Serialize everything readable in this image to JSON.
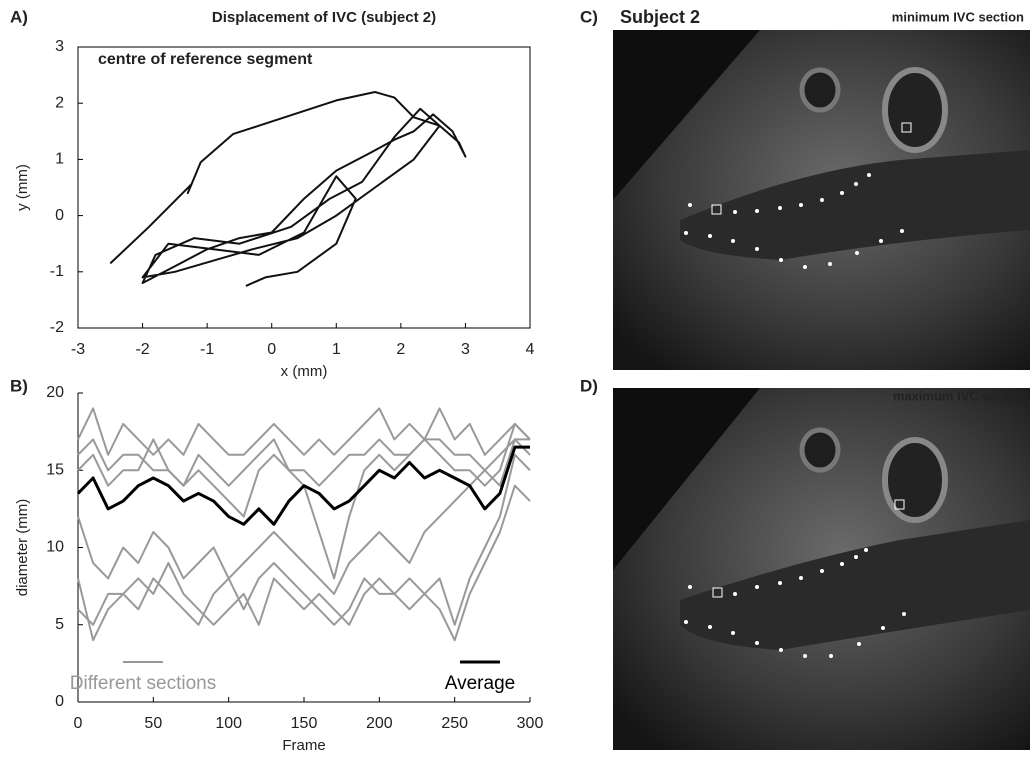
{
  "chart_data": [
    {
      "type": "line",
      "panel_label": "A)",
      "title": "Displacement of IVC (subject 2)",
      "annotation": "centre of reference segment",
      "xlabel": "x (mm)",
      "ylabel": "y (mm)",
      "box": true,
      "x": [
        -2.5,
        -1.9,
        -1.25,
        -1.3,
        -1.1,
        -0.6,
        0.2,
        1.0,
        1.6,
        1.9,
        2.2,
        2.6,
        2.9,
        3.0,
        2.8,
        2.5,
        2.2,
        1.9,
        1.5,
        1.0,
        0.5,
        0.0,
        -0.5,
        -1.0,
        -1.5,
        -2.0,
        -1.8,
        -1.2,
        -0.5,
        0.3,
        0.9,
        1.4,
        1.9,
        2.3,
        2.6,
        2.2,
        1.6,
        1.0,
        0.4,
        -0.3,
        -0.9,
        -1.5,
        -2.0,
        -1.6,
        -0.9,
        -0.2,
        0.5,
        1.0,
        1.3,
        1.0,
        0.4,
        -0.1,
        -0.4
      ],
      "series": [
        {
          "color": "#111111",
          "values": [
            -0.85,
            -0.2,
            0.55,
            0.4,
            0.95,
            1.45,
            1.75,
            2.05,
            2.2,
            2.1,
            1.75,
            1.6,
            1.3,
            1.05,
            1.5,
            1.8,
            1.5,
            1.35,
            1.1,
            0.8,
            0.3,
            -0.3,
            -0.4,
            -0.6,
            -0.9,
            -1.2,
            -0.7,
            -0.4,
            -0.5,
            -0.2,
            0.3,
            0.6,
            1.4,
            1.9,
            1.6,
            1.0,
            0.5,
            0.0,
            -0.4,
            -0.6,
            -0.8,
            -1.0,
            -1.1,
            -0.5,
            -0.6,
            -0.7,
            -0.3,
            0.7,
            0.3,
            -0.5,
            -1.0,
            -1.1,
            -1.25
          ]
        }
      ],
      "xlim": [
        -3,
        4
      ],
      "ylim": [
        -2,
        3
      ],
      "xticks": [
        -3,
        -2,
        -1,
        0,
        1,
        2,
        3,
        4
      ],
      "yticks": [
        -2,
        -1,
        0,
        1,
        2,
        3
      ]
    },
    {
      "type": "line",
      "panel_label": "B)",
      "xlabel": "Frame",
      "ylabel": "diameter (mm)",
      "box": false,
      "x": [
        0,
        10,
        20,
        30,
        40,
        50,
        60,
        70,
        80,
        90,
        100,
        110,
        120,
        130,
        140,
        150,
        160,
        170,
        180,
        190,
        200,
        210,
        220,
        230,
        240,
        250,
        260,
        270,
        280,
        290,
        300
      ],
      "series": [
        {
          "name": "Different sections",
          "color": "#999999",
          "values": [
            17,
            19,
            16,
            18,
            17,
            16,
            17,
            16,
            18,
            17,
            16,
            16,
            17,
            18,
            17,
            16,
            17,
            16,
            17,
            18,
            19,
            17,
            18,
            17,
            19,
            17,
            18,
            16,
            17,
            18,
            17
          ]
        },
        {
          "color": "#999999",
          "values": [
            16,
            17,
            15,
            16,
            16,
            15,
            15,
            14,
            16,
            15,
            14,
            15,
            16,
            17,
            15,
            15,
            14,
            15,
            16,
            16,
            17,
            16,
            16,
            17,
            17,
            16,
            16,
            15,
            16,
            17,
            17
          ]
        },
        {
          "color": "#999999",
          "values": [
            15,
            16,
            14,
            15,
            15,
            17,
            15,
            14,
            15,
            14,
            13,
            12,
            15,
            16,
            15,
            14,
            11,
            8,
            12,
            15,
            16,
            15,
            16,
            17,
            16,
            15,
            15,
            14,
            15,
            18,
            17
          ]
        },
        {
          "color": "#999999",
          "values": [
            12,
            9,
            8,
            10,
            9,
            11,
            10,
            8,
            9,
            10,
            8,
            9,
            10,
            11,
            10,
            9,
            8,
            7,
            9,
            10,
            11,
            10,
            9,
            11,
            12,
            13,
            14,
            15,
            14,
            17,
            16
          ]
        },
        {
          "color": "#999999",
          "values": [
            6,
            5,
            7,
            7,
            6,
            8,
            7,
            6,
            5,
            7,
            8,
            6,
            8,
            9,
            8,
            7,
            6,
            5,
            6,
            8,
            7,
            7,
            8,
            7,
            6,
            4,
            7,
            9,
            11,
            14,
            13
          ]
        },
        {
          "color": "#999999",
          "values": [
            8,
            4,
            6,
            7,
            8,
            7,
            9,
            7,
            6,
            5,
            6,
            7,
            5,
            8,
            7,
            6,
            7,
            6,
            5,
            7,
            8,
            7,
            6,
            7,
            8,
            5,
            8,
            10,
            12,
            16,
            15
          ]
        },
        {
          "name": "Average",
          "color": "#000000",
          "width": 3,
          "values": [
            13.5,
            14.5,
            12.5,
            13,
            14,
            14.5,
            14,
            13,
            13.5,
            13,
            12,
            11.5,
            12.5,
            11.5,
            13,
            14,
            13.5,
            12.5,
            13,
            14,
            15,
            14.5,
            15.5,
            14.5,
            15,
            14.5,
            14,
            12.5,
            13.5,
            16.5,
            16.5
          ]
        }
      ],
      "xlim": [
        0,
        300
      ],
      "ylim": [
        0,
        20
      ],
      "xticks": [
        0,
        50,
        100,
        150,
        200,
        250,
        300
      ],
      "yticks": [
        0,
        5,
        10,
        15,
        20
      ]
    }
  ],
  "panels": {
    "c_label": "C)",
    "c_title": "Subject 2",
    "c_caption": "minimum IVC section",
    "d_label": "D)",
    "d_caption": "maximum IVC section"
  }
}
